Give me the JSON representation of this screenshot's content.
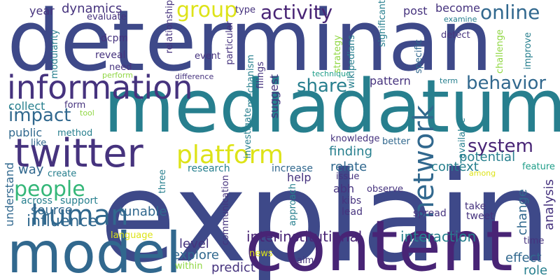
{
  "palette": {
    "indigo": "#3e4989",
    "navy": "#482475",
    "purple": "#46337e",
    "teal": "#277f8e",
    "steel": "#31688e",
    "green": "#35b779",
    "lime": "#addc30",
    "yellow": "#dde318",
    "cyan": "#1f9e89",
    "light": "#90d743"
  },
  "words": {
    "explain": "explain",
    "determinan": "determinan",
    "mediadatum": "mediadatum",
    "content": "content",
    "model": "model",
    "information": "information",
    "twitter": "twitter",
    "platform": "platform",
    "network": "network",
    "human": "human",
    "people": "people",
    "group": "group",
    "activity": "activity",
    "online": "online",
    "behavior": "behavior",
    "system": "system",
    "share": "share",
    "impact": "impact",
    "interinstitutional": "interinstitutional",
    "interaction": "interaction",
    "influence": "influence",
    "dynamics": "dynamics",
    "year": "year",
    "evaluate": "evaluate",
    "become": "become",
    "post": "post",
    "collect": "collect",
    "public": "public",
    "like": "like",
    "method": "method",
    "way": "way",
    "create": "create",
    "across": "across",
    "support": "support",
    "source": "source",
    "understand": "understand",
    "tunable": "tunable",
    "level": "level",
    "explore": "explore",
    "predict": "predict",
    "within": "within",
    "language": "language",
    "news": "news",
    "aim": "aim",
    "three": "three",
    "research": "research",
    "increase": "increase",
    "relate": "relate",
    "finding": "finding",
    "context": "context",
    "potential": "potential",
    "change": "change",
    "analysis": "analysis",
    "effect": "effect",
    "role": "role",
    "time": "time",
    "spread": "spread",
    "tweet": "tweet",
    "take": "take",
    "lead": "lead",
    "kibs": "kibs",
    "abh": "abh",
    "observe": "observe",
    "issue": "issue",
    "help": "help",
    "knowledge": "knowledge",
    "better": "better",
    "pattern": "pattern",
    "suggest": "suggest",
    "filings": "filings",
    "mechanism": "mechanism",
    "investigate": "investigate",
    "communication": "communication",
    "approach": "approach",
    "particular": "particular",
    "relationship": "relationship",
    "event": "event",
    "difference": "difference",
    "dcpm": "dcpm",
    "reveal": "reveal",
    "need": "need",
    "perform": "perform",
    "modularity": "modularity",
    "form": "form",
    "tool": "tool",
    "type": "type",
    "significant": "significant",
    "wikipedians": "wikipedians",
    "strategy": "strategy",
    "technique": "technique",
    "specific": "specific",
    "examine": "examine",
    "detect": "detect",
    "challenge": "challenge",
    "improve": "improve",
    "term": "term",
    "available": "available",
    "feature": "feature",
    "among": "among"
  }
}
